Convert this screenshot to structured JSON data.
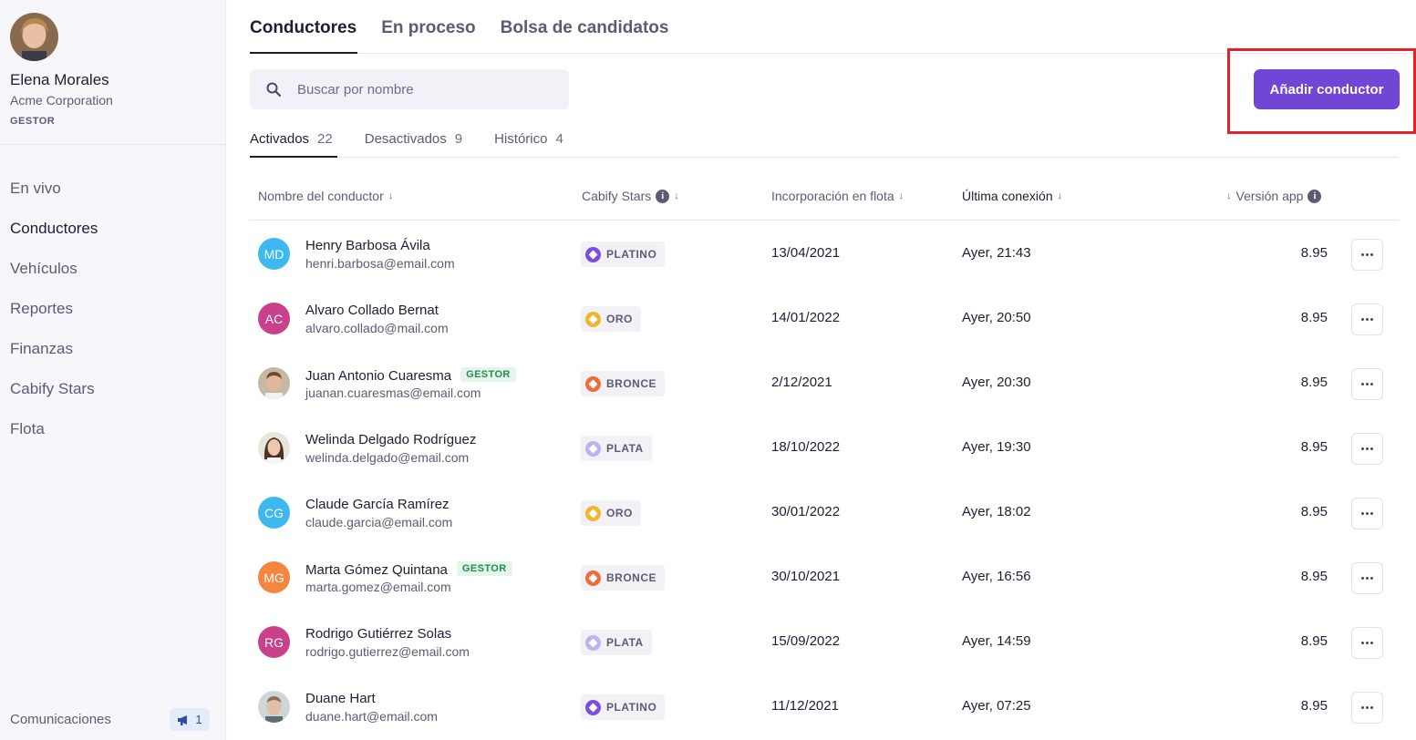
{
  "sidebar": {
    "user": {
      "name": "Elena Morales",
      "company": "Acme Corporation",
      "role": "GESTOR"
    },
    "nav": [
      {
        "label": "En vivo",
        "active": false
      },
      {
        "label": "Conductores",
        "active": true
      },
      {
        "label": "Vehículos",
        "active": false
      },
      {
        "label": "Reportes",
        "active": false
      },
      {
        "label": "Finanzas",
        "active": false
      },
      {
        "label": "Cabify Stars",
        "active": false
      },
      {
        "label": "Flota",
        "active": false
      }
    ],
    "communications": {
      "label": "Comunicaciones",
      "count": "1",
      "icon": "megaphone-icon"
    }
  },
  "top_tabs": [
    {
      "label": "Conductores",
      "active": true
    },
    {
      "label": "En proceso",
      "active": false
    },
    {
      "label": "Bolsa de candidatos",
      "active": false
    }
  ],
  "search": {
    "placeholder": "Buscar por nombre",
    "value": ""
  },
  "add_button": {
    "label": "Añadir conductor"
  },
  "sub_tabs": [
    {
      "label": "Activados",
      "count": "22",
      "active": true
    },
    {
      "label": "Desactivados",
      "count": "9",
      "active": false
    },
    {
      "label": "Histórico",
      "count": "4",
      "active": false
    }
  ],
  "table": {
    "headers": {
      "name": "Nombre del conductor",
      "stars": "Cabify Stars",
      "joined": "Incorporación en flota",
      "last": "Última conexión",
      "version": "Versión app"
    },
    "rows": [
      {
        "initials": "MD",
        "avatar_color": "#3db8f0",
        "photo": false,
        "name": "Henry Barbosa Ávila",
        "email": "henri.barbosa@email.com",
        "gestor": "",
        "tier": "PLATINO",
        "tier_color": "#7a4fe0",
        "joined": "13/04/2021",
        "last": "Ayer, 21:43",
        "version": "8.95"
      },
      {
        "initials": "AC",
        "avatar_color": "#c9418a",
        "photo": false,
        "name": "Alvaro Collado Bernat",
        "email": "alvaro.collado@mail.com",
        "gestor": "",
        "tier": "ORO",
        "tier_color": "#f0b62c",
        "joined": "14/01/2022",
        "last": "Ayer, 20:50",
        "version": "8.95"
      },
      {
        "initials": "",
        "avatar_color": "#b9a58c",
        "photo": true,
        "name": "Juan Antonio Cuaresma",
        "email": "juanan.cuaresmas@email.com",
        "gestor": "GESTOR",
        "tier": "BRONCE",
        "tier_color": "#ef6b3a",
        "joined": "2/12/2021",
        "last": "Ayer, 20:30",
        "version": "8.95"
      },
      {
        "initials": "",
        "avatar_color": "#c9a58a",
        "photo": true,
        "name": "Welinda Delgado Rodríguez",
        "email": "welinda.delgado@email.com",
        "gestor": "",
        "tier": "PLATA",
        "tier_color": "#b9b3f0",
        "joined": "18/10/2022",
        "last": "Ayer, 19:30",
        "version": "8.95"
      },
      {
        "initials": "CG",
        "avatar_color": "#3db8f0",
        "photo": false,
        "name": "Claude García Ramírez",
        "email": "claude.garcia@email.com",
        "gestor": "",
        "tier": "ORO",
        "tier_color": "#f0b62c",
        "joined": "30/01/2022",
        "last": "Ayer, 18:02",
        "version": "8.95"
      },
      {
        "initials": "MG",
        "avatar_color": "#f5863e",
        "photo": false,
        "name": "Marta Gómez Quintana",
        "email": "marta.gomez@email.com",
        "gestor": "GESTOR",
        "tier": "BRONCE",
        "tier_color": "#ef6b3a",
        "joined": "30/10/2021",
        "last": "Ayer, 16:56",
        "version": "8.95"
      },
      {
        "initials": "RG",
        "avatar_color": "#c9418a",
        "photo": false,
        "name": "Rodrigo Gutiérrez Solas",
        "email": "rodrigo.gutierrez@email.com",
        "gestor": "",
        "tier": "PLATA",
        "tier_color": "#b9b3f0",
        "joined": "15/09/2022",
        "last": "Ayer, 14:59",
        "version": "8.95"
      },
      {
        "initials": "",
        "avatar_color": "#a9b2b8",
        "photo": true,
        "name": "Duane Hart",
        "email": "duane.hart@email.com",
        "gestor": "",
        "tier": "PLATINO",
        "tier_color": "#7a4fe0",
        "joined": "11/12/2021",
        "last": "Ayer, 07:25",
        "version": "8.95"
      }
    ]
  },
  "colors": {
    "accent": "#7145d6",
    "highlight": "#e0242b"
  }
}
